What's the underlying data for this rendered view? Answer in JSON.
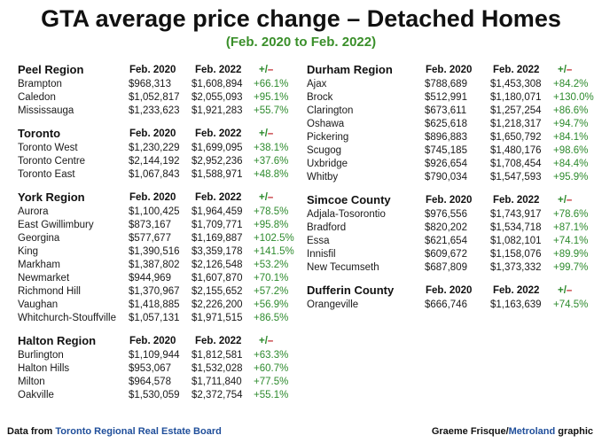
{
  "title": "GTA average price change – Detached Homes",
  "subtitle": "(Feb. 2020 to Feb. 2022)",
  "footer": {
    "data_prefix": "Data from",
    "data_source": "Toronto Regional Real Estate Board",
    "credit_name": "Graeme Frisque/",
    "credit_brand": "Metroland",
    "credit_suffix": "graphic"
  },
  "colors": {
    "title": "#111111",
    "subtitle_green": "#3a8f2a",
    "percent_green": "#2e8b2e",
    "minus_red": "#c0282d",
    "source_blue": "#1f4e9a"
  },
  "chart_data": {
    "type": "table",
    "title": "GTA average price change – Detached Homes",
    "subtitle": "(Feb. 2020 to Feb. 2022)",
    "column_headers": [
      "Feb. 2020",
      "Feb. 2022",
      "+/–"
    ],
    "pm_plus": "+/",
    "pm_minus": "–",
    "regions": [
      {
        "name": "Peel Region",
        "column": "left",
        "rows": [
          {
            "area": "Brampton",
            "feb2020": "$968,313",
            "feb2022": "$1,608,894",
            "change": "+66.1%"
          },
          {
            "area": "Caledon",
            "feb2020": "$1,052,817",
            "feb2022": "$2,055,093",
            "change": "+95.1%"
          },
          {
            "area": "Mississauga",
            "feb2020": "$1,233,623",
            "feb2022": "$1,921,283",
            "change": "+55.7%"
          }
        ]
      },
      {
        "name": "Toronto",
        "column": "left",
        "rows": [
          {
            "area": "Toronto West",
            "feb2020": "$1,230,229",
            "feb2022": "$1,699,095",
            "change": "+38.1%"
          },
          {
            "area": "Toronto Centre",
            "feb2020": "$2,144,192",
            "feb2022": "$2,952,236",
            "change": "+37.6%"
          },
          {
            "area": "Toronto East",
            "feb2020": "$1,067,843",
            "feb2022": "$1,588,971",
            "change": "+48.8%"
          }
        ]
      },
      {
        "name": "York Region",
        "column": "left",
        "rows": [
          {
            "area": "Aurora",
            "feb2020": "$1,100,425",
            "feb2022": "$1,964,459",
            "change": "+78.5%"
          },
          {
            "area": "East Gwillimbury",
            "feb2020": "$873,167",
            "feb2022": "$1,709,771",
            "change": "+95.8%"
          },
          {
            "area": "Georgina",
            "feb2020": "$577,677",
            "feb2022": "$1,169,887",
            "change": "+102.5%"
          },
          {
            "area": "King",
            "feb2020": "$1,390,516",
            "feb2022": "$3,359,178",
            "change": "+141.5%"
          },
          {
            "area": "Markham",
            "feb2020": "$1,387,802",
            "feb2022": "$2,126,548",
            "change": "+53.2%"
          },
          {
            "area": "Newmarket",
            "feb2020": "$944,969",
            "feb2022": "$1,607,870",
            "change": "+70.1%"
          },
          {
            "area": "Richmond Hill",
            "feb2020": "$1,370,967",
            "feb2022": "$2,155,652",
            "change": "+57.2%"
          },
          {
            "area": "Vaughan",
            "feb2020": "$1,418,885",
            "feb2022": "$2,226,200",
            "change": "+56.9%"
          },
          {
            "area": "Whitchurch-Stouffville",
            "feb2020": "$1,057,131",
            "feb2022": "$1,971,515",
            "change": "+86.5%"
          }
        ]
      },
      {
        "name": "Halton Region",
        "column": "left",
        "rows": [
          {
            "area": "Burlington",
            "feb2020": "$1,109,944",
            "feb2022": "$1,812,581",
            "change": "+63.3%"
          },
          {
            "area": "Halton Hills",
            "feb2020": "$953,067",
            "feb2022": "$1,532,028",
            "change": "+60.7%"
          },
          {
            "area": "Milton",
            "feb2020": "$964,578",
            "feb2022": "$1,711,840",
            "change": "+77.5%"
          },
          {
            "area": "Oakville",
            "feb2020": "$1,530,059",
            "feb2022": "$2,372,754",
            "change": "+55.1%"
          }
        ]
      },
      {
        "name": "Durham Region",
        "column": "right",
        "rows": [
          {
            "area": "Ajax",
            "feb2020": "$788,689",
            "feb2022": "$1,453,308",
            "change": "+84.2%"
          },
          {
            "area": "Brock",
            "feb2020": "$512,991",
            "feb2022": "$1,180,071",
            "change": "+130.0%"
          },
          {
            "area": "Clarington",
            "feb2020": "$673,611",
            "feb2022": "$1,257,254",
            "change": "+86.6%"
          },
          {
            "area": "Oshawa",
            "feb2020": "$625,618",
            "feb2022": "$1,218,317",
            "change": "+94.7%"
          },
          {
            "area": "Pickering",
            "feb2020": "$896,883",
            "feb2022": "$1,650,792",
            "change": "+84.1%"
          },
          {
            "area": "Scugog",
            "feb2020": "$745,185",
            "feb2022": "$1,480,176",
            "change": "+98.6%"
          },
          {
            "area": "Uxbridge",
            "feb2020": "$926,654",
            "feb2022": "$1,708,454",
            "change": "+84.4%"
          },
          {
            "area": "Whitby",
            "feb2020": "$790,034",
            "feb2022": "$1,547,593",
            "change": "+95.9%"
          }
        ]
      },
      {
        "name": "Simcoe County",
        "column": "right",
        "rows": [
          {
            "area": "Adjala-Tosorontio",
            "feb2020": "$976,556",
            "feb2022": "$1,743,917",
            "change": "+78.6%"
          },
          {
            "area": "Bradford",
            "feb2020": "$820,202",
            "feb2022": "$1,534,718",
            "change": "+87.1%"
          },
          {
            "area": "Essa",
            "feb2020": "$621,654",
            "feb2022": "$1,082,101",
            "change": "+74.1%"
          },
          {
            "area": "Innisfil",
            "feb2020": "$609,672",
            "feb2022": "$1,158,076",
            "change": "+89.9%"
          },
          {
            "area": "New Tecumseth",
            "feb2020": "$687,809",
            "feb2022": "$1,373,332",
            "change": "+99.7%"
          }
        ]
      },
      {
        "name": "Dufferin County",
        "column": "right",
        "rows": [
          {
            "area": "Orangeville",
            "feb2020": "$666,746",
            "feb2022": "$1,163,639",
            "change": "+74.5%"
          }
        ]
      }
    ]
  }
}
